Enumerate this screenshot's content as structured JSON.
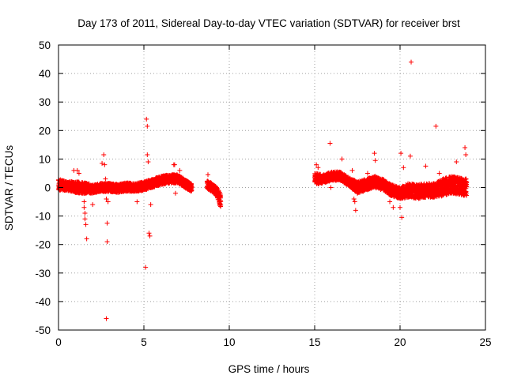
{
  "chart_data": {
    "type": "scatter",
    "title": "Day 173 of 2011, Sidereal Day-to-day VTEC variation (SDTVAR) for receiver brst",
    "xlabel": "GPS time / hours",
    "ylabel": "SDTVAR / TECUs",
    "xlim": [
      0,
      25
    ],
    "ylim": [
      -50,
      50
    ],
    "xticks": [
      0,
      5,
      10,
      15,
      20,
      25
    ],
    "yticks": [
      -50,
      -40,
      -30,
      -20,
      -10,
      0,
      10,
      20,
      30,
      40,
      50
    ],
    "xtick_labels": [
      "0",
      "5",
      "10",
      "15",
      "20",
      "25"
    ],
    "ytick_labels": [
      "-50",
      "-40",
      "-30",
      "-20",
      "-10",
      "0",
      "10",
      "20",
      "30",
      "40",
      "50"
    ],
    "grid": true,
    "marker": "+",
    "colors": {
      "series": "#ff0000",
      "grid": "#a0a0a0",
      "axes": "#000000"
    },
    "series": [
      {
        "name": "SDTVAR",
        "bands": [
          {
            "x": [
              0.0,
              0.5,
              1.0,
              1.5,
              2.0,
              2.5,
              3.0,
              3.5,
              4.0,
              4.5,
              5.0,
              5.5,
              6.0,
              6.5,
              7.0,
              7.5,
              7.8
            ],
            "center": [
              1.0,
              0.5,
              0.2,
              -0.2,
              -0.5,
              0.0,
              0.0,
              -0.3,
              0.2,
              0.0,
              0.5,
              1.5,
              2.5,
              3.0,
              3.0,
              1.0,
              0.0
            ],
            "half": [
              2.0,
              1.5,
              2.0,
              2.0,
              1.5,
              1.5,
              1.5,
              1.5,
              1.5,
              1.5,
              1.5,
              1.5,
              1.5,
              1.5,
              1.5,
              1.5,
              1.5
            ]
          },
          {
            "x": [
              8.7,
              9.0,
              9.2,
              9.4,
              9.5
            ],
            "center": [
              1.0,
              0.0,
              -1.0,
              -3.0,
              -5.0
            ],
            "half": [
              1.5,
              1.5,
              1.5,
              2.0,
              2.5
            ]
          },
          {
            "x": [
              15.0,
              15.5,
              16.0,
              16.5,
              17.0,
              17.5,
              18.0,
              18.5,
              19.0,
              19.5,
              20.0,
              20.5,
              21.0,
              21.5,
              22.0,
              22.5,
              23.0,
              23.5,
              23.9
            ],
            "center": [
              3.0,
              3.0,
              4.0,
              4.0,
              2.0,
              0.0,
              1.0,
              2.0,
              1.0,
              -1.0,
              -2.0,
              -1.0,
              -1.5,
              -1.0,
              -1.0,
              0.0,
              1.0,
              0.5,
              0.0
            ],
            "half": [
              2.0,
              1.5,
              1.5,
              1.5,
              1.5,
              2.0,
              2.0,
              2.0,
              2.0,
              2.0,
              2.0,
              2.5,
              2.5,
              2.5,
              2.5,
              3.0,
              3.0,
              3.0,
              3.0
            ]
          }
        ],
        "outliers": [
          {
            "x": 0.9,
            "y": 6
          },
          {
            "x": 1.1,
            "y": 6
          },
          {
            "x": 1.2,
            "y": 5
          },
          {
            "x": 1.5,
            "y": -5
          },
          {
            "x": 1.5,
            "y": -7
          },
          {
            "x": 1.55,
            "y": -9
          },
          {
            "x": 1.55,
            "y": -11
          },
          {
            "x": 1.6,
            "y": -13
          },
          {
            "x": 1.65,
            "y": -18
          },
          {
            "x": 2.0,
            "y": -6
          },
          {
            "x": 2.55,
            "y": 8.5
          },
          {
            "x": 2.65,
            "y": 11.5
          },
          {
            "x": 2.7,
            "y": 8
          },
          {
            "x": 2.75,
            "y": 3
          },
          {
            "x": 2.8,
            "y": -46
          },
          {
            "x": 2.85,
            "y": -19
          },
          {
            "x": 2.85,
            "y": -12.5
          },
          {
            "x": 2.8,
            "y": -4
          },
          {
            "x": 2.9,
            "y": -5
          },
          {
            "x": 4.6,
            "y": -5
          },
          {
            "x": 5.05,
            "y": 1.5
          },
          {
            "x": 5.1,
            "y": -28
          },
          {
            "x": 5.15,
            "y": 24
          },
          {
            "x": 5.2,
            "y": 21.5
          },
          {
            "x": 5.2,
            "y": 11.5
          },
          {
            "x": 5.25,
            "y": 9
          },
          {
            "x": 5.3,
            "y": -16
          },
          {
            "x": 5.35,
            "y": -17
          },
          {
            "x": 5.4,
            "y": -6
          },
          {
            "x": 6.75,
            "y": 8
          },
          {
            "x": 6.8,
            "y": 8
          },
          {
            "x": 6.85,
            "y": -2
          },
          {
            "x": 7.1,
            "y": 6
          },
          {
            "x": 8.75,
            "y": 4.5
          },
          {
            "x": 15.1,
            "y": 8
          },
          {
            "x": 15.2,
            "y": 7
          },
          {
            "x": 15.9,
            "y": 15.5
          },
          {
            "x": 15.95,
            "y": 0
          },
          {
            "x": 16.6,
            "y": 10
          },
          {
            "x": 17.2,
            "y": 6
          },
          {
            "x": 17.3,
            "y": -4
          },
          {
            "x": 17.35,
            "y": -5
          },
          {
            "x": 17.4,
            "y": -8
          },
          {
            "x": 17.5,
            "y": -2
          },
          {
            "x": 18.1,
            "y": 5
          },
          {
            "x": 18.5,
            "y": 12
          },
          {
            "x": 18.55,
            "y": 9.5
          },
          {
            "x": 19.4,
            "y": -5
          },
          {
            "x": 19.6,
            "y": -7
          },
          {
            "x": 20.0,
            "y": -7
          },
          {
            "x": 20.05,
            "y": 12
          },
          {
            "x": 20.1,
            "y": -10.5
          },
          {
            "x": 20.2,
            "y": 7
          },
          {
            "x": 20.6,
            "y": 11
          },
          {
            "x": 20.65,
            "y": 44
          },
          {
            "x": 21.5,
            "y": 7.5
          },
          {
            "x": 22.1,
            "y": 21.5
          },
          {
            "x": 22.3,
            "y": 5
          },
          {
            "x": 23.3,
            "y": 9
          },
          {
            "x": 23.8,
            "y": 14
          },
          {
            "x": 23.85,
            "y": 11.5
          }
        ]
      }
    ]
  }
}
